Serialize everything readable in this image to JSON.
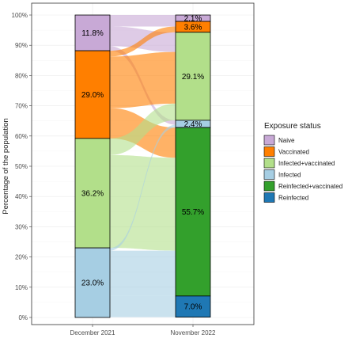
{
  "chart_data": {
    "type": "alluvial",
    "ylabel": "Percentage of the population",
    "yticks": [
      "0%",
      "10%",
      "20%",
      "30%",
      "40%",
      "50%",
      "60%",
      "70%",
      "80%",
      "90%",
      "100%"
    ],
    "ylim": [
      0,
      100
    ],
    "categories": [
      "December 2021",
      "November 2022"
    ],
    "legend_title": "Exposure status",
    "legend_position": "right",
    "grid": true,
    "statuses": [
      {
        "name": "Naive",
        "color": "#c8a9d6"
      },
      {
        "name": "Vaccinated",
        "color": "#ff7f00"
      },
      {
        "name": "Infected+vaccinated",
        "color": "#b2df8a"
      },
      {
        "name": "Infected",
        "color": "#a6cee3"
      },
      {
        "name": "Reinfected+vaccinated",
        "color": "#33a02c"
      },
      {
        "name": "Reinfected",
        "color": "#1f78b4"
      }
    ],
    "stacks": [
      {
        "x": "December 2021",
        "segments": [
          {
            "status": "Naive",
            "value": 11.8,
            "label": "11.8%"
          },
          {
            "status": "Vaccinated",
            "value": 29.0,
            "label": "29.0%"
          },
          {
            "status": "Infected+vaccinated",
            "value": 36.2,
            "label": "36.2%"
          },
          {
            "status": "Infected",
            "value": 23.0,
            "label": "23.0%"
          }
        ]
      },
      {
        "x": "November 2022",
        "segments": [
          {
            "status": "Naive",
            "value": 2.1,
            "label": "2.1%"
          },
          {
            "status": "Vaccinated",
            "value": 3.6,
            "label": "3.6%"
          },
          {
            "status": "Infected+vaccinated",
            "value": 29.1,
            "label": "29.1%"
          },
          {
            "status": "Infected",
            "value": 2.4,
            "label": "2.4%"
          },
          {
            "status": "Reinfected+vaccinated",
            "value": 55.7,
            "label": "55.7%"
          },
          {
            "status": "Reinfected",
            "value": 7.0,
            "label": "7.0%"
          }
        ]
      }
    ],
    "flows": [
      {
        "from": "Naive",
        "to": "Naive",
        "value": 2.1
      },
      {
        "from": "Naive",
        "to": "Vaccinated",
        "value": 1.7
      },
      {
        "from": "Naive",
        "to": "Infected+vaccinated",
        "value": 6.5
      },
      {
        "from": "Naive",
        "to": "Infected",
        "value": 1.5
      },
      {
        "from": "Vaccinated",
        "to": "Vaccinated",
        "value": 1.9
      },
      {
        "from": "Vaccinated",
        "to": "Infected+vaccinated",
        "value": 17.1
      },
      {
        "from": "Vaccinated",
        "to": "Reinfected+vaccinated",
        "value": 10.0
      },
      {
        "from": "Infected+vaccinated",
        "to": "Infected+vaccinated",
        "value": 5.5
      },
      {
        "from": "Infected+vaccinated",
        "to": "Reinfected+vaccinated",
        "value": 30.7
      },
      {
        "from": "Infected",
        "to": "Infected",
        "value": 0.9
      },
      {
        "from": "Infected",
        "to": "Reinfected+vaccinated",
        "value": 15.0
      },
      {
        "from": "Infected",
        "to": "Reinfected",
        "value": 7.0
      },
      {
        "from": "Infected",
        "to": "Naive",
        "value": 0.0
      }
    ]
  }
}
